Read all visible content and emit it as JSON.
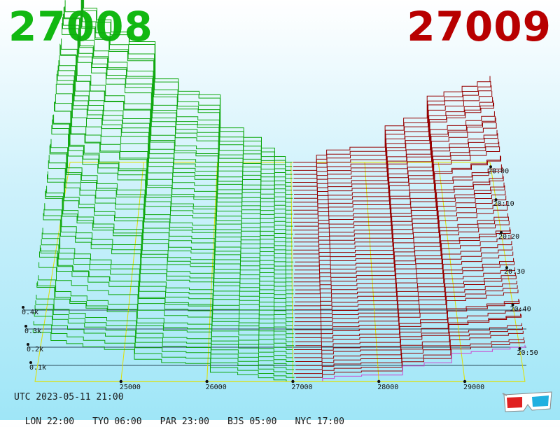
{
  "header": {
    "bid": "27008",
    "ask": "27009",
    "bid_color": "#12b812",
    "ask_color": "#b80000"
  },
  "footer": {
    "utc": "UTC 2023-05-11 21:00",
    "zones": [
      "LON 22:00",
      "TYO 06:00",
      "PAR 23:00",
      "BJS 05:00",
      "NYC 17:00"
    ]
  },
  "icons": {
    "corner": "3d-glasses-icon"
  },
  "colors": {
    "bid_lines": "#0fa80f",
    "ask_lines": "#960000",
    "grid": "#e0e000",
    "depth_ref": "#2a4a5a",
    "last_ask": "#cc44cc"
  },
  "chart_data": {
    "type": "3d-depth",
    "price_axis": {
      "ticks": [
        25000,
        26000,
        27000,
        28000,
        29000
      ],
      "range": [
        24000,
        29700
      ]
    },
    "volume_axis": {
      "ticks": [
        "0.1k",
        "0.2k",
        "0.3k",
        "0.4k"
      ],
      "values": [
        100,
        200,
        300,
        400
      ]
    },
    "time_axis": {
      "ticks": [
        "20:00",
        "20:10",
        "20:20",
        "20:30",
        "20:40",
        "20:50"
      ]
    },
    "bid_price": 27008,
    "ask_price": 27009
  }
}
